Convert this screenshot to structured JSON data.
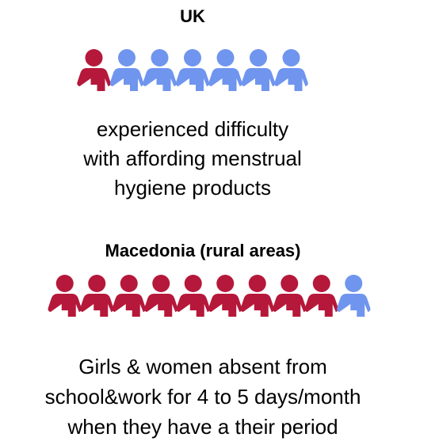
{
  "sections": [
    {
      "title": "UK",
      "highlighted": 1,
      "total": 7,
      "text_lines": [
        "experienced difficulty",
        "with affording menstrual",
        "hygiene products"
      ]
    },
    {
      "title": "Macedonia (rural areas)",
      "highlighted": 9,
      "total": 10,
      "text_lines": [
        "Girls & women absent from",
        "school&work for 4 to 5 days/month",
        "when they have a their period"
      ]
    }
  ],
  "colors": {
    "highlighted": "#b5183a",
    "other": "#6f95ee"
  }
}
